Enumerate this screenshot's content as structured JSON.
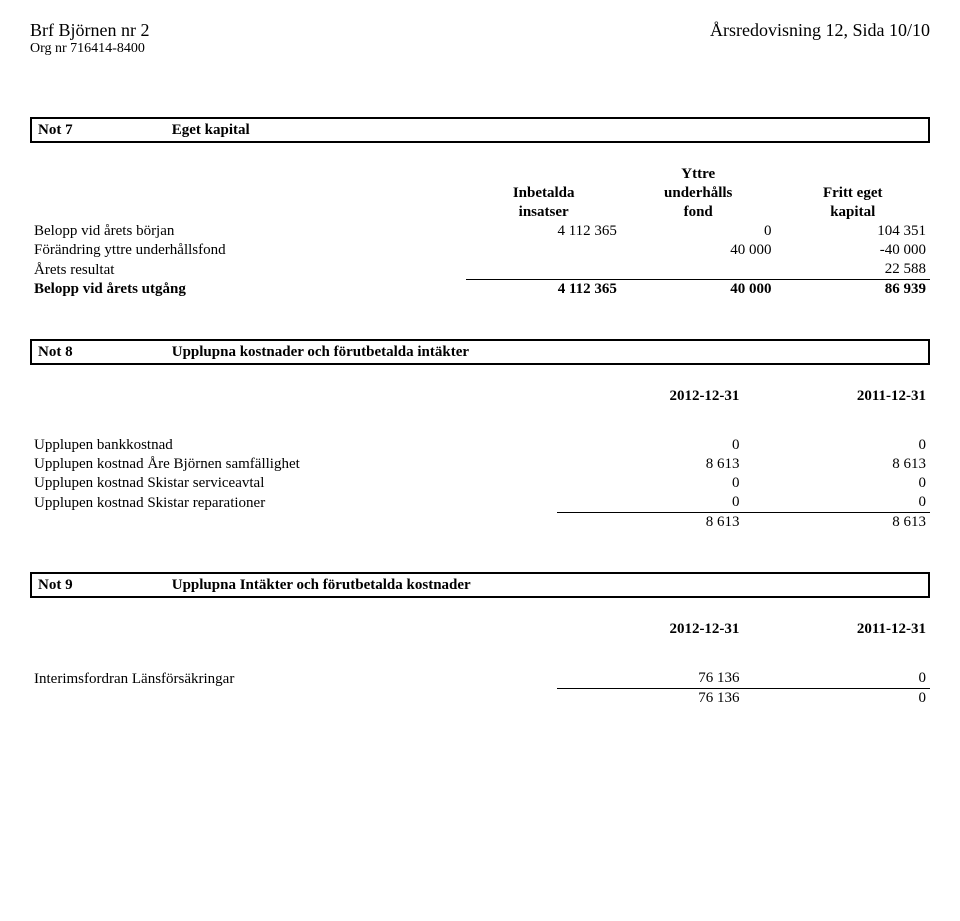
{
  "header": {
    "company_name": "Brf Björnen nr 2",
    "org_nr": "Org nr 716414-8400",
    "doc_title": "Årsredovisning 12, Sida 10/10"
  },
  "note7": {
    "num": "Not 7",
    "title": "Eget kapital",
    "col1a": "Inbetalda",
    "col1b": "insatser",
    "col2a": "Yttre",
    "col2b": "underhålls",
    "col2c": "fond",
    "col3a": "Fritt eget",
    "col3b": "kapital",
    "rows": [
      {
        "label": "Belopp vid årets början",
        "c1": "4 112 365",
        "c2": "0",
        "c3": "104 351"
      },
      {
        "label": "Förändring yttre underhållsfond",
        "c1": "",
        "c2": "40 000",
        "c3": "-40 000"
      },
      {
        "label": "Årets resultat",
        "c1": "",
        "c2": "",
        "c3": "22 588"
      }
    ],
    "total": {
      "label": "Belopp vid årets utgång",
      "c1": "4 112 365",
      "c2": "40 000",
      "c3": "86 939"
    }
  },
  "note8": {
    "num": "Not 8",
    "title": "Upplupna kostnader och förutbetalda intäkter",
    "col1": "2012-12-31",
    "col2": "2011-12-31",
    "rows": [
      {
        "label": "Upplupen bankkostnad",
        "c1": "0",
        "c2": "0"
      },
      {
        "label": "Upplupen kostnad Åre Björnen samfällighet",
        "c1": "8 613",
        "c2": "8 613"
      },
      {
        "label": "Upplupen kostnad Skistar serviceavtal",
        "c1": "0",
        "c2": "0"
      },
      {
        "label": "Upplupen kostnad Skistar reparationer",
        "c1": "0",
        "c2": "0"
      }
    ],
    "total": {
      "c1": "8 613",
      "c2": "8 613"
    }
  },
  "note9": {
    "num": "Not 9",
    "title": "Upplupna Intäkter och förutbetalda kostnader",
    "col1": "2012-12-31",
    "col2": "2011-12-31",
    "rows": [
      {
        "label": "Interimsfordran Länsförsäkringar",
        "c1": "76 136",
        "c2": "0"
      }
    ],
    "total": {
      "c1": "76 136",
      "c2": "0"
    }
  }
}
